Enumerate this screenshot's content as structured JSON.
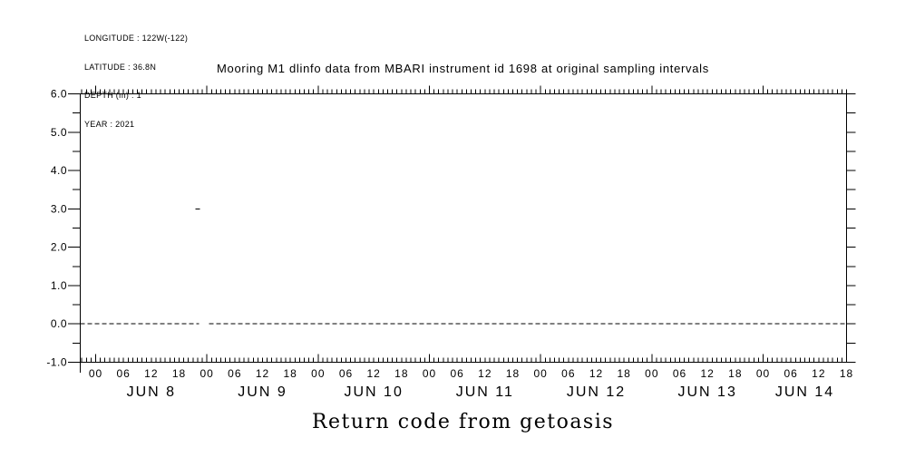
{
  "header": {
    "lines": [
      "LONGITUDE : 122W(-122)",
      "LATITUDE : 36.8N",
      "DEPTH (m) : 1",
      "YEAR : 2021"
    ]
  },
  "chart_data": {
    "type": "line",
    "title": "Mooring M1 dlinfo data from MBARI instrument id 1698 at original sampling intervals",
    "caption": "Return code from getoasis",
    "ylabel": "Return code from getoasis",
    "ylim": [
      -1.0,
      6.0
    ],
    "y_major_tick_labels": [
      "6.0",
      "5.0",
      "4.0",
      "3.0",
      "2.0",
      "1.0",
      "0.0",
      "-1.0"
    ],
    "y_minor_tick_step": 0.5,
    "x_axis": {
      "unit": "hours since JUN 8 2021 00:00",
      "range_hours": [
        -3.33,
        162
      ],
      "hour_tick_step": 1,
      "hour_label_step": 6,
      "hour_labels": [
        "00",
        "06",
        "12",
        "18",
        "00",
        "06",
        "12",
        "18",
        "00",
        "06",
        "12",
        "18",
        "00",
        "06",
        "12",
        "18",
        "00",
        "06",
        "12",
        "18",
        "00",
        "06",
        "12",
        "18",
        "00",
        "06",
        "12",
        "18"
      ],
      "day_labels": [
        "JUN 8",
        "JUN 9",
        "JUN 10",
        "JUN 11",
        "JUN 12",
        "JUN 13",
        "JUN 14"
      ]
    },
    "grid": "off",
    "legend": "none",
    "line_style": "dashed",
    "series": [
      {
        "name": "return code",
        "segments": [
          {
            "value": 0,
            "from_hour": -3.33,
            "to_hour": 22.3
          },
          {
            "value": 3,
            "from_hour": 21.5,
            "to_hour": 22.9
          },
          {
            "value": 0,
            "from_hour": 24.5,
            "to_hour": 162
          }
        ]
      }
    ],
    "colors": {
      "foreground": "#000000",
      "background": "#ffffff"
    }
  }
}
